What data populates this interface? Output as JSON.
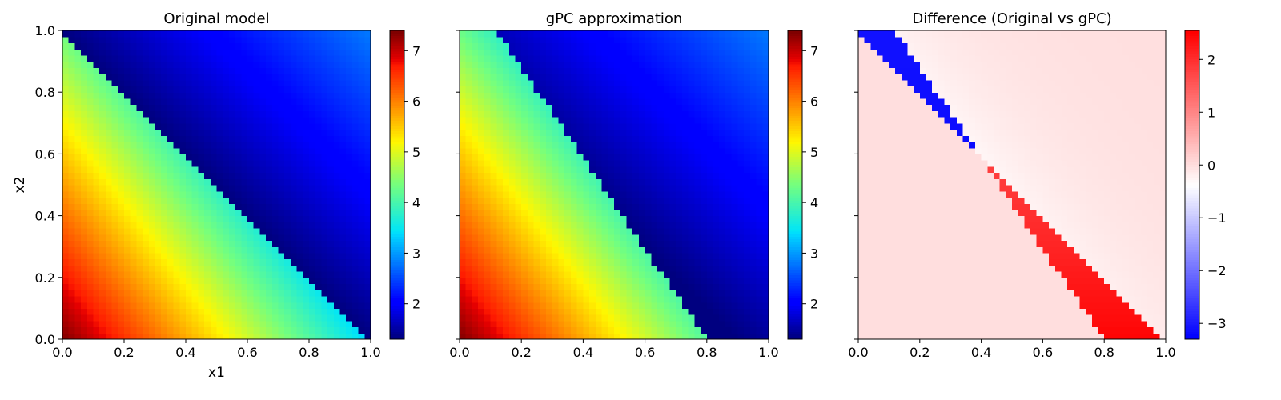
{
  "figure": {
    "panels": [
      {
        "title": "Original model",
        "xlabel": "x1",
        "ylabel": "x2"
      },
      {
        "title": "gPC approximation",
        "xlabel": "",
        "ylabel": ""
      },
      {
        "title": "Difference (Original vs gPC)",
        "xlabel": "",
        "ylabel": ""
      }
    ]
  },
  "chart_data": [
    {
      "type": "heatmap",
      "title": "Original model",
      "xlabel": "x1",
      "ylabel": "x2",
      "xlim": [
        0,
        1
      ],
      "ylim": [
        0,
        1
      ],
      "x_ticks": [
        "0.0",
        "0.2",
        "0.4",
        "0.6",
        "0.8",
        "1.0"
      ],
      "y_ticks": [
        "0.0",
        "0.2",
        "0.4",
        "0.6",
        "0.8",
        "1.0"
      ],
      "grid_resolution": 50,
      "colormap": "jet",
      "colorbar": {
        "min": 1.3,
        "max": 7.4,
        "ticks": [
          "2",
          "3",
          "4",
          "5",
          "6",
          "7"
        ]
      },
      "discontinuity": "x1 + x2 = 1",
      "below_line": "value ≈ 7.4 at (0,0) decreasing to ≈ 3.3 near (1,0) and ≈ 4.3 near (0,1)",
      "above_line": "value ≈ 1.3 near the diagonal increasing to ≈ 2.8 at (1,1)"
    },
    {
      "type": "heatmap",
      "title": "gPC approximation",
      "xlabel": "",
      "ylabel": "",
      "xlim": [
        0,
        1
      ],
      "ylim": [
        0,
        1
      ],
      "x_ticks": [
        "0.0",
        "0.2",
        "0.4",
        "0.6",
        "0.8",
        "1.0"
      ],
      "y_ticks": [
        "0.0",
        "0.2",
        "0.4",
        "0.6",
        "0.8",
        "1.0"
      ],
      "grid_resolution": 50,
      "colormap": "jet",
      "colorbar": {
        "min": 1.3,
        "max": 7.4,
        "ticks": [
          "2",
          "3",
          "4",
          "5",
          "6",
          "7"
        ]
      },
      "discontinuity": "from (0.12, 1.0) to (0.8, 0.0)"
    },
    {
      "type": "heatmap",
      "title": "Difference (Original vs gPC)",
      "xlabel": "",
      "ylabel": "",
      "xlim": [
        0,
        1
      ],
      "ylim": [
        0,
        1
      ],
      "x_ticks": [
        "0.0",
        "0.2",
        "0.4",
        "0.6",
        "0.8",
        "1.0"
      ],
      "y_ticks": [
        "0.0",
        "0.2",
        "0.4",
        "0.6",
        "0.8",
        "1.0"
      ],
      "grid_resolution": 50,
      "colormap": "bwr",
      "colorbar": {
        "min": -3.3,
        "max": 2.55,
        "ticks": [
          "2",
          "1",
          "0",
          "−1",
          "−2",
          "−3"
        ]
      },
      "notes": "blue band ≈ −3.3 near top-left of the diagonal, red band ≈ 1.5 to 2.5 between the two discontinuities, light blue ≈ −0.3 above the diagonal, near 0 elsewhere"
    }
  ]
}
